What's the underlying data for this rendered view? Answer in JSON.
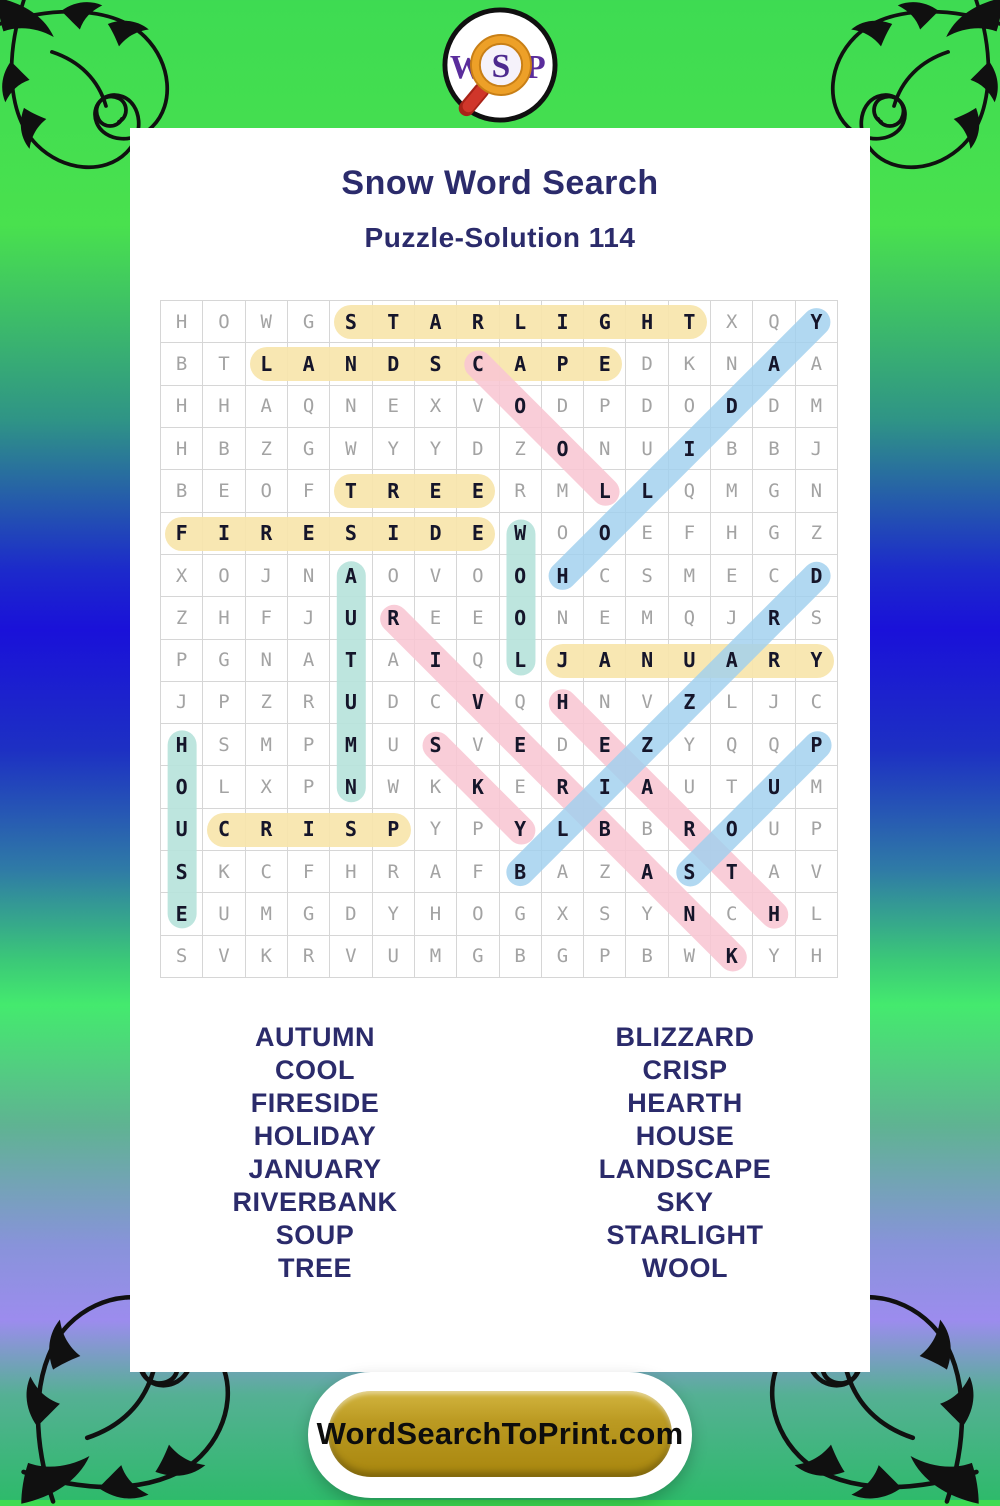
{
  "logo": {
    "left_letter": "W",
    "lens_letter": "S",
    "right_letter": "P"
  },
  "header": {
    "title": "Snow Word Search",
    "subtitle": "Puzzle-Solution 114"
  },
  "puzzle": {
    "grid_size": 16,
    "rows": [
      "HOWGSTARLIGHTXQY",
      "BTLANDSCAPEDKNAA",
      "HHAQNEXVODPDODDM",
      "HBZGWYYDZONUIBBJ",
      "BEOFTREERMLLQMGN",
      "FIRESIDEWOOEFHGZ",
      "XOJNAOVOOHCSMECD",
      "ZHFJUREEONEMQJRS",
      "PGNATAIQLJANUARY",
      "JPZRUDCVQHNVZLJC",
      "HSMPMUSVEDEZYQQP",
      "OLXPNWKKERIAUTUM",
      "UCRISPYPYLBBROUP",
      "SKCFHRAFBAZASTAV",
      "EUMGDYHOGXSYNCHL",
      "SVKRVUMGBGPBWKYH"
    ],
    "solutions": [
      {
        "word": "STARLIGHT",
        "row": 1,
        "col": 5,
        "dir": "E",
        "color": "yellow"
      },
      {
        "word": "LANDSCAPE",
        "row": 2,
        "col": 3,
        "dir": "E",
        "color": "yellow"
      },
      {
        "word": "TREE",
        "row": 5,
        "col": 5,
        "dir": "E",
        "color": "yellow"
      },
      {
        "word": "FIRESIDE",
        "row": 6,
        "col": 1,
        "dir": "E",
        "color": "yellow"
      },
      {
        "word": "JANUARY",
        "row": 9,
        "col": 10,
        "dir": "E",
        "color": "yellow"
      },
      {
        "word": "CRISP",
        "row": 13,
        "col": 2,
        "dir": "E",
        "color": "yellow"
      },
      {
        "word": "WOOL",
        "row": 6,
        "col": 9,
        "dir": "S",
        "color": "teal"
      },
      {
        "word": "AUTUMN",
        "row": 7,
        "col": 5,
        "dir": "S",
        "color": "teal"
      },
      {
        "word": "HOUSE",
        "row": 11,
        "col": 1,
        "dir": "S",
        "color": "teal"
      },
      {
        "word": "COOL",
        "row": 2,
        "col": 8,
        "dir": "SE",
        "color": "pink"
      },
      {
        "word": "RIVERBANK",
        "row": 8,
        "col": 6,
        "dir": "SE",
        "color": "pink"
      },
      {
        "word": "HEARTH",
        "row": 10,
        "col": 10,
        "dir": "SE",
        "color": "pink"
      },
      {
        "word": "SKY",
        "row": 11,
        "col": 7,
        "dir": "SE",
        "color": "pink"
      },
      {
        "word": "HOLIDAY",
        "row": 7,
        "col": 10,
        "dir": "NE",
        "color": "blue"
      },
      {
        "word": "BLIZZARD",
        "row": 14,
        "col": 9,
        "dir": "NE",
        "color": "blue"
      },
      {
        "word": "SOUP",
        "row": 14,
        "col": 13,
        "dir": "NE",
        "color": "blue"
      }
    ],
    "highlight_colors": {
      "yellow": "rgba(247,229,171,0.92)",
      "teal": "rgba(183,227,219,0.92)",
      "pink": "rgba(248,198,211,0.88)",
      "blue": "rgba(160,207,238,0.82)"
    }
  },
  "word_list": {
    "left": [
      "AUTUMN",
      "COOL",
      "FIRESIDE",
      "HOLIDAY",
      "JANUARY",
      "RIVERBANK",
      "SOUP",
      "TREE"
    ],
    "right": [
      "BLIZZARD",
      "CRISP",
      "HEARTH",
      "HOUSE",
      "LANDSCAPE",
      "SKY",
      "STARLIGHT",
      "WOOL"
    ]
  },
  "footer": {
    "site_label": "WordSearchToPrint.com"
  },
  "theme": {
    "title_color": "#2b2b6b",
    "letter_gray": "#a3a3a3",
    "letter_dark": "#15152a",
    "gold": "#b3921b",
    "logo_purple": "#5a2d9c",
    "logo_orange": "#eda028",
    "logo_red": "#d0362a"
  }
}
